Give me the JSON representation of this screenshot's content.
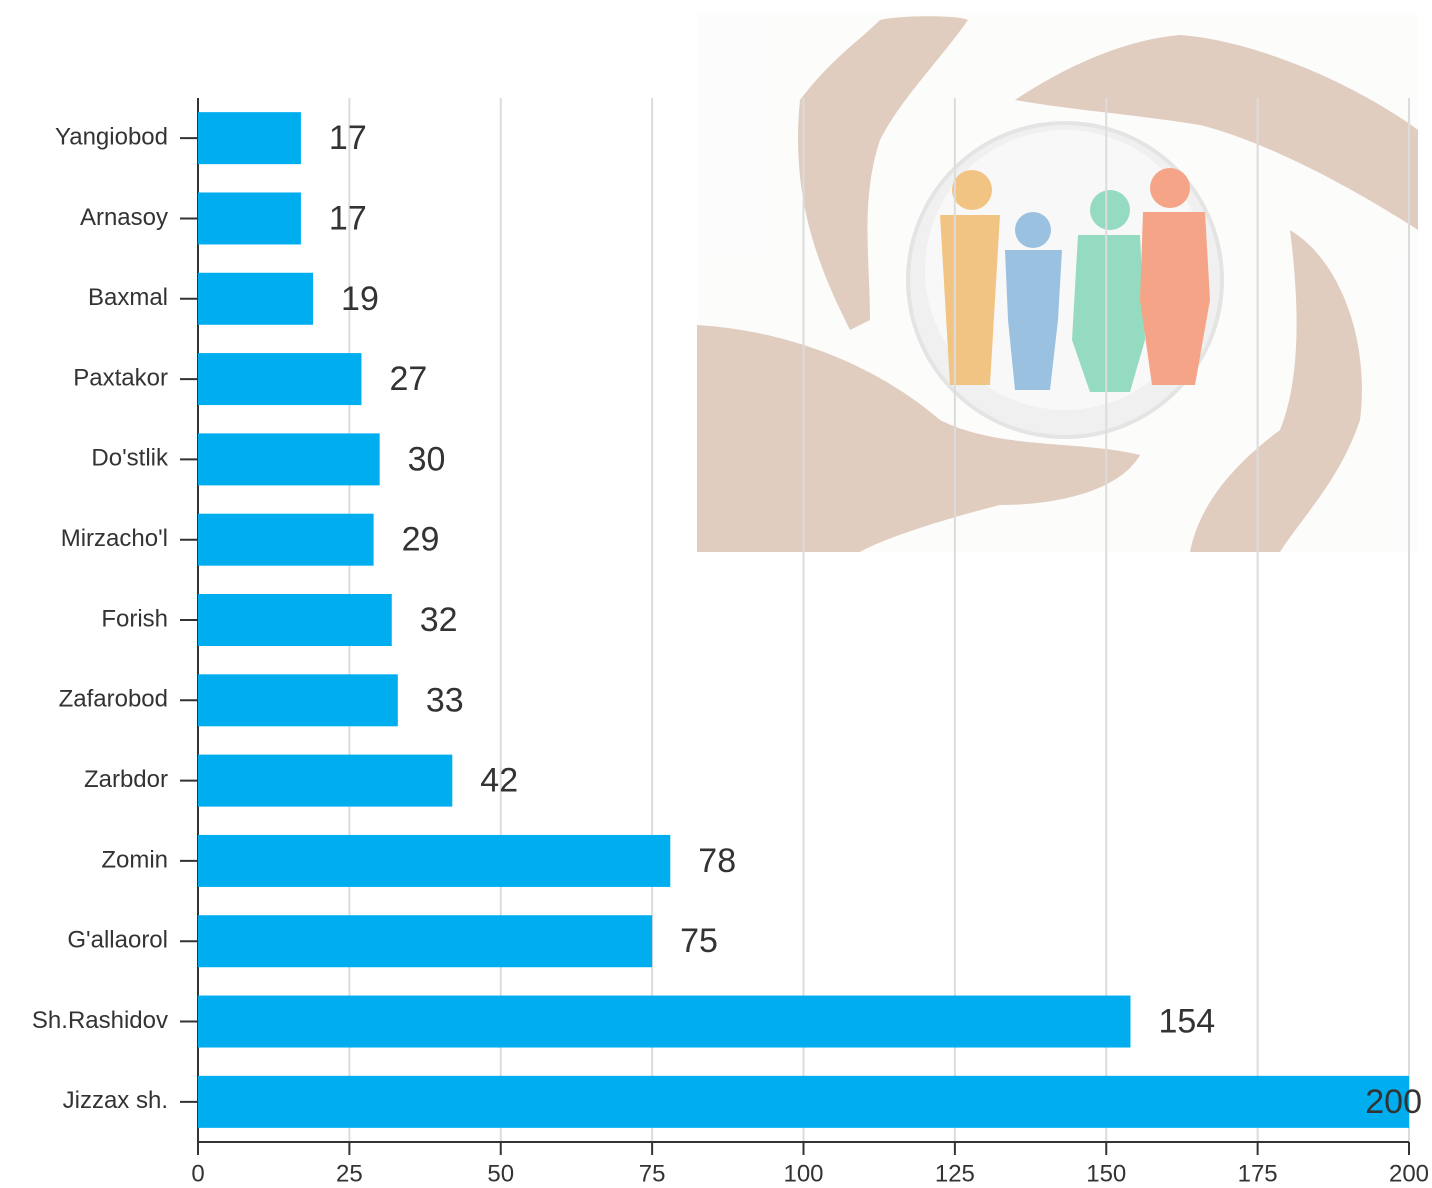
{
  "chart_data": {
    "type": "barh",
    "categories": [
      "Yangiobod",
      "Arnasoy",
      "Baxmal",
      "Paxtakor",
      "Do'stlik",
      "Mirzacho'l",
      "Forish",
      "Zafarobod",
      "Zarbdor",
      "Zomin",
      "G'allaorol",
      "Sh.Rashidov",
      "Jizzax sh."
    ],
    "values": [
      17,
      17,
      19,
      27,
      30,
      29,
      32,
      33,
      42,
      78,
      75,
      154,
      200
    ],
    "color": "#00aeef",
    "xlim": [
      0,
      200
    ],
    "xticks": [
      0,
      25,
      50,
      75,
      100,
      125,
      150,
      175,
      200
    ],
    "grid": true
  }
}
